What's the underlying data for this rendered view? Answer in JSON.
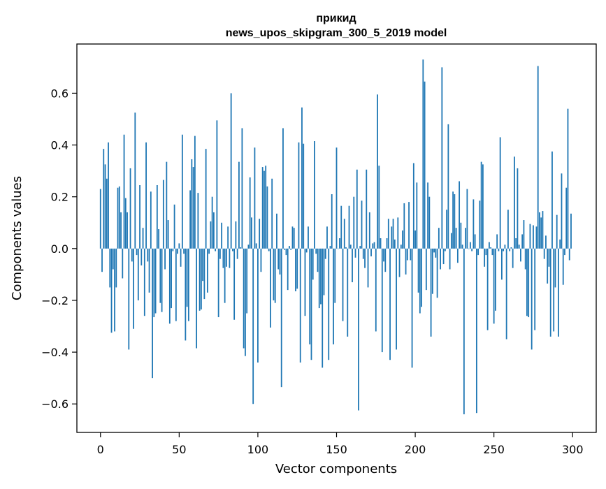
{
  "chart_data": {
    "type": "bar",
    "title": "прикид",
    "subtitle": "news_upos_skipgram_300_5_2019 model",
    "xlabel": "Vector components",
    "ylabel": "Components values",
    "xlim": [
      -15,
      315
    ],
    "ylim": [
      -0.71,
      0.79
    ],
    "x_ticks": [
      0,
      50,
      100,
      150,
      200,
      250,
      300
    ],
    "x_tick_labels": [
      "0",
      "50",
      "100",
      "150",
      "200",
      "250",
      "300"
    ],
    "y_ticks": [
      -0.6,
      -0.4,
      -0.2,
      0.0,
      0.2,
      0.4,
      0.6
    ],
    "y_tick_labels": [
      "−0.6",
      "−0.4",
      "−0.2",
      "0.0",
      "0.2",
      "0.4",
      "0.6"
    ],
    "grid": false,
    "legend": "none",
    "bar_color": "#1f77b4",
    "values": [
      0.23,
      -0.09,
      0.385,
      0.325,
      0.27,
      0.41,
      -0.15,
      -0.325,
      -0.08,
      -0.32,
      -0.15,
      0.235,
      0.24,
      0.14,
      -0.115,
      0.44,
      0.195,
      0.14,
      -0.39,
      0.31,
      -0.05,
      -0.31,
      0.525,
      -0.025,
      -0.2,
      0.245,
      -0.065,
      0.08,
      -0.26,
      0.41,
      -0.05,
      -0.17,
      0.22,
      -0.5,
      -0.265,
      -0.25,
      0.245,
      0.075,
      -0.21,
      -0.245,
      0.265,
      -0.08,
      0.335,
      0.11,
      -0.29,
      -0.23,
      -0.01,
      0.17,
      -0.28,
      -0.02,
      0.02,
      -0.07,
      0.44,
      -0.02,
      -0.355,
      -0.225,
      -0.28,
      0.225,
      0.345,
      0.315,
      0.435,
      -0.385,
      0.215,
      -0.24,
      -0.235,
      -0.125,
      -0.195,
      0.385,
      -0.17,
      -0.02,
      0.105,
      0.2,
      0.14,
      -0.01,
      0.495,
      -0.265,
      -0.04,
      0.1,
      -0.075,
      -0.21,
      -0.07,
      0.085,
      -0.075,
      0.6,
      -0.01,
      -0.275,
      0.105,
      -0.04,
      0.335,
      0.005,
      0.465,
      -0.385,
      -0.415,
      -0.25,
      0.015,
      0.275,
      0.12,
      -0.6,
      0.39,
      0.02,
      -0.44,
      0.115,
      -0.09,
      0.315,
      0.3,
      0.32,
      0.24,
      -0.01,
      -0.305,
      0.27,
      -0.2,
      -0.21,
      0.135,
      -0.08,
      -0.1,
      -0.535,
      0.465,
      -0.005,
      -0.025,
      -0.16,
      0.01,
      -0.005,
      0.085,
      0.08,
      -0.165,
      -0.155,
      0.41,
      -0.44,
      0.545,
      0.405,
      -0.26,
      -0.015,
      0.085,
      -0.37,
      -0.43,
      -0.12,
      0.415,
      -0.02,
      -0.09,
      -0.23,
      -0.215,
      -0.46,
      -0.18,
      -0.04,
      0.085,
      -0.43,
      0.01,
      0.21,
      -0.37,
      -0.21,
      0.39,
      0.0,
      0.04,
      0.165,
      -0.28,
      0.115,
      0.005,
      -0.34,
      0.165,
      0.015,
      -0.13,
      0.2,
      -0.035,
      0.305,
      -0.625,
      0.01,
      0.185,
      -0.04,
      -0.075,
      0.305,
      -0.15,
      0.14,
      -0.03,
      0.02,
      0.025,
      -0.32,
      0.595,
      0.32,
      0.04,
      -0.4,
      -0.05,
      -0.09,
      0.04,
      0.115,
      -0.43,
      0.085,
      0.115,
      0.035,
      -0.39,
      0.12,
      -0.11,
      0.015,
      0.07,
      0.175,
      -0.1,
      -0.045,
      0.18,
      -0.045,
      -0.46,
      0.33,
      0.07,
      0.255,
      -0.17,
      -0.25,
      -0.225,
      0.73,
      0.645,
      -0.16,
      0.255,
      0.2,
      -0.34,
      -0.175,
      -0.015,
      -0.035,
      -0.19,
      0.08,
      -0.08,
      0.7,
      -0.06,
      -0.01,
      0.15,
      0.48,
      -0.08,
      0.06,
      0.22,
      0.21,
      0.08,
      -0.055,
      0.26,
      0.1,
      0.015,
      -0.64,
      0.08,
      0.23,
      0.0,
      0.025,
      -0.01,
      0.19,
      0.055,
      -0.635,
      -0.025,
      0.185,
      0.335,
      0.325,
      -0.07,
      -0.025,
      -0.315,
      0.025,
      0.005,
      -0.025,
      -0.29,
      -0.24,
      0.055,
      -0.01,
      0.43,
      -0.12,
      -0.01,
      0.015,
      -0.35,
      0.15,
      -0.01,
      0.005,
      -0.075,
      0.355,
      0.04,
      0.31,
      0.015,
      -0.05,
      0.055,
      0.11,
      -0.08,
      -0.26,
      -0.265,
      0.095,
      -0.39,
      0.09,
      -0.315,
      0.085,
      0.705,
      0.14,
      0.12,
      0.145,
      -0.04,
      0.05,
      -0.135,
      -0.07,
      -0.34,
      0.375,
      -0.32,
      -0.15,
      0.13,
      -0.34,
      0.035,
      0.29,
      -0.14,
      -0.025,
      0.235,
      0.54,
      -0.045,
      0.135
    ]
  }
}
